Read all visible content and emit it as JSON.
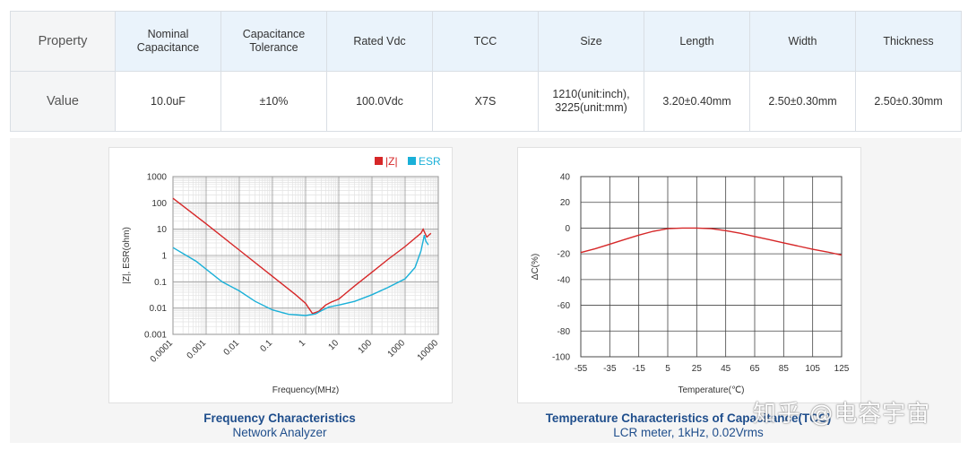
{
  "table": {
    "row_labels": [
      "Property",
      "Value"
    ],
    "properties": [
      "Nominal Capacitance",
      "Capacitance Tolerance",
      "Rated Vdc",
      "TCC",
      "Size",
      "Length",
      "Width",
      "Thickness"
    ],
    "values": [
      "10.0uF",
      "±10%",
      "100.0Vdc",
      "X7S",
      "1210(unit:inch), 3225(unit:mm)",
      "3.20±0.40mm",
      "2.50±0.30mm",
      "2.50±0.30mm"
    ]
  },
  "chart_data": [
    {
      "type": "line",
      "title": "Frequency Characteristics",
      "subtitle": "Network Analyzer",
      "xlabel": "Frequency(MHz)",
      "ylabel": "|Z|, ESR(ohm)",
      "xscale": "log",
      "yscale": "log",
      "xlim": [
        0.0001,
        10000
      ],
      "ylim": [
        0.001,
        1000
      ],
      "xticks": [
        "0.0001",
        "0.001",
        "0.01",
        "0.1",
        "1",
        "10",
        "100",
        "1000",
        "10000"
      ],
      "yticks": [
        "1000",
        "100",
        "10",
        "1",
        "0.1",
        "0.01",
        "0.001"
      ],
      "grid": true,
      "legend": "top-right",
      "series": [
        {
          "name": "|Z|",
          "color": "#d62728",
          "x": [
            0.0001,
            0.001,
            0.01,
            0.1,
            0.5,
            1.0,
            1.6,
            2.5,
            4,
            6,
            10,
            30,
            100,
            300,
            1000,
            3000,
            3500,
            4500,
            6000
          ],
          "y": [
            150,
            16,
            1.6,
            0.16,
            0.032,
            0.015,
            0.0062,
            0.0075,
            0.013,
            0.017,
            0.022,
            0.07,
            0.23,
            0.7,
            2.2,
            7,
            10,
            5,
            7
          ]
        },
        {
          "name": "ESR",
          "color": "#1ab0d8",
          "x": [
            0.0001,
            0.0005,
            0.001,
            0.003,
            0.01,
            0.03,
            0.1,
            0.3,
            1,
            2,
            3,
            5,
            10,
            30,
            100,
            300,
            1000,
            2000,
            3000,
            3800,
            4200,
            5000
          ],
          "y": [
            2,
            0.6,
            0.3,
            0.1,
            0.045,
            0.018,
            0.0085,
            0.0058,
            0.0052,
            0.006,
            0.008,
            0.011,
            0.013,
            0.018,
            0.032,
            0.06,
            0.13,
            0.35,
            1.5,
            6,
            3.5,
            2.5
          ]
        }
      ]
    },
    {
      "type": "line",
      "title": "Temperature Characteristics of Capacitance(TCC)",
      "subtitle": "LCR meter, 1kHz, 0.02Vrms",
      "xlabel": "Temperature(℃)",
      "ylabel": "ΔC(%)",
      "xlim": [
        -55,
        125
      ],
      "ylim": [
        -100,
        40
      ],
      "xticks": [
        "-55",
        "-35",
        "-15",
        "5",
        "25",
        "45",
        "65",
        "85",
        "105",
        "125"
      ],
      "yticks": [
        "40",
        "20",
        "0",
        "-20",
        "-40",
        "-60",
        "-80",
        "-100"
      ],
      "grid": true,
      "series": [
        {
          "name": "ΔC",
          "color": "#d62728",
          "x": [
            -55,
            -45,
            -35,
            -25,
            -15,
            -5,
            5,
            15,
            25,
            35,
            45,
            55,
            65,
            75,
            85,
            95,
            105,
            115,
            125
          ],
          "y": [
            -19,
            -16,
            -12.5,
            -9,
            -5.5,
            -2.5,
            -0.5,
            0,
            0,
            -0.5,
            -2,
            -4,
            -6.5,
            -9,
            -11.5,
            -14,
            -16.5,
            -18.5,
            -21
          ]
        }
      ]
    }
  ],
  "watermark": "知乎 @电容宇宙"
}
